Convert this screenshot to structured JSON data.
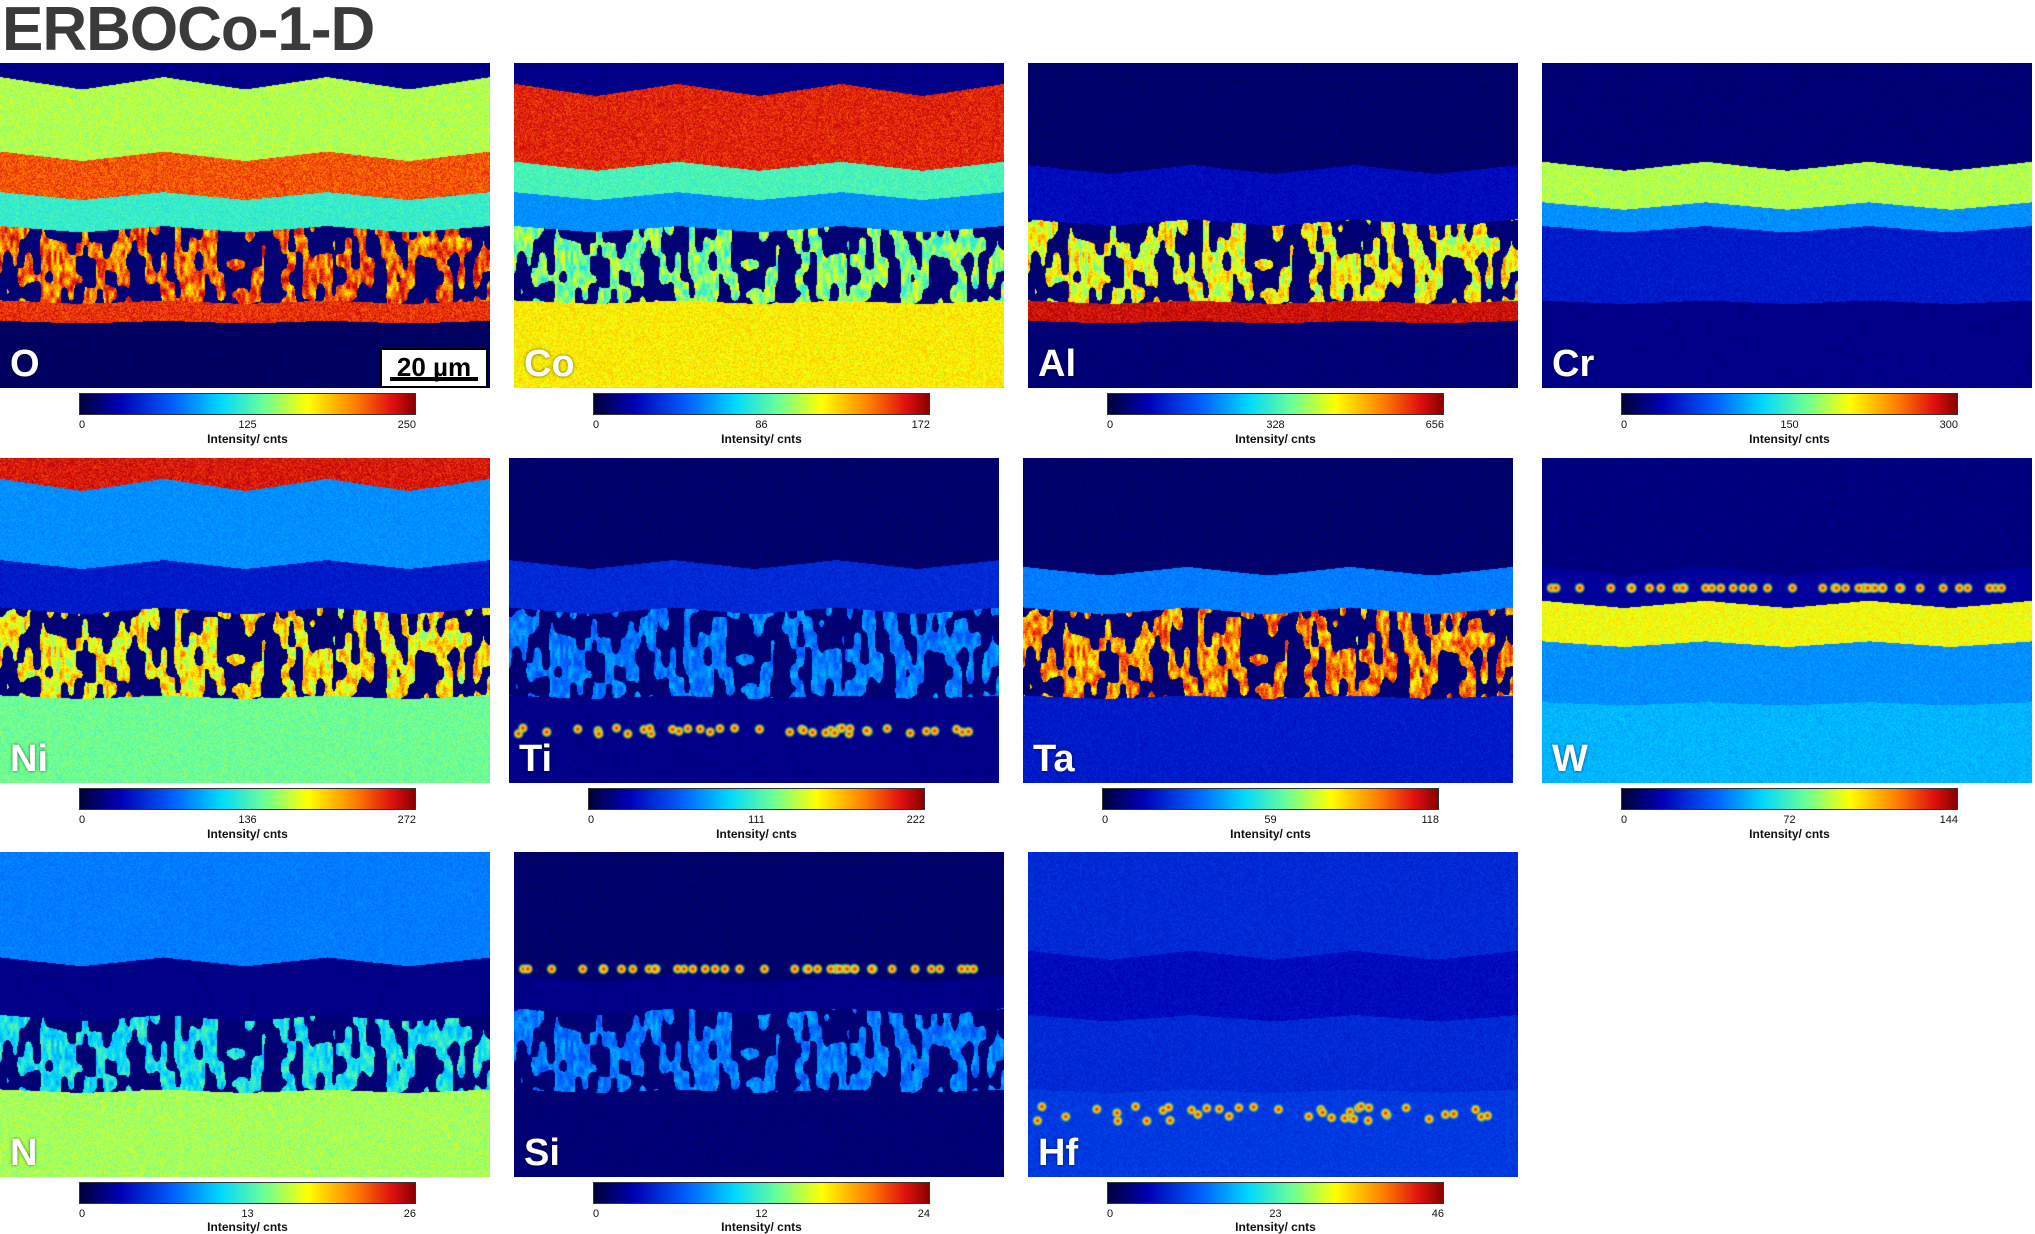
{
  "title": "ERBOCo-1-D",
  "scale_bar": "20 µm",
  "colorbar_label": "Intensity/ cnts",
  "colormap": [
    "#00003a",
    "#0000b4",
    "#0060ff",
    "#00d8ff",
    "#6cff96",
    "#ffff00",
    "#ff8000",
    "#e01010",
    "#8a0000"
  ],
  "panels": [
    {
      "element": "O",
      "min": "0",
      "mid": "125",
      "max": "250"
    },
    {
      "element": "Co",
      "min": "0",
      "mid": "86",
      "max": "172"
    },
    {
      "element": "Al",
      "min": "0",
      "mid": "328",
      "max": "656"
    },
    {
      "element": "Cr",
      "min": "0",
      "mid": "150",
      "max": "300"
    },
    {
      "element": "Ni",
      "min": "0",
      "mid": "136",
      "max": "272"
    },
    {
      "element": "Ti",
      "min": "0",
      "mid": "111",
      "max": "222"
    },
    {
      "element": "Ta",
      "min": "0",
      "mid": "59",
      "max": "118"
    },
    {
      "element": "W",
      "min": "0",
      "mid": "72",
      "max": "144"
    },
    {
      "element": "N",
      "min": "0",
      "mid": "13",
      "max": "26"
    },
    {
      "element": "Si",
      "min": "0",
      "mid": "12",
      "max": "24"
    },
    {
      "element": "Hf",
      "min": "0",
      "mid": "23",
      "max": "46"
    }
  ]
}
